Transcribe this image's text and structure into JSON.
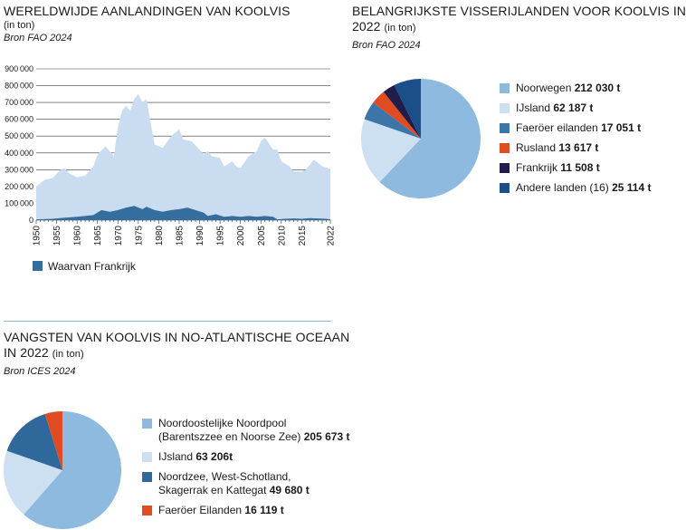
{
  "chart1": {
    "title": "WERELDWIJDE AANLANDINGEN VAN KOOLVIS",
    "unit": "(in ton)",
    "source": "Bron FAO 2024",
    "legend_label": "Waarvan Frankrijk"
  },
  "chart2": {
    "title_line1": "BELANGRIJKSTE VISSERIJLANDEN VOOR KOOLVIS IN",
    "title_line2": "2022",
    "unit": "(in ton)",
    "source": "Bron FAO 2024"
  },
  "chart3": {
    "title_line1": "VANGSTEN VAN KOOLVIS IN NO-ATLANTISCHE OCEAAN",
    "title_line2": "IN 2022",
    "unit": "(in ton)",
    "source": "Bron ICES 2024"
  },
  "chart_data": [
    {
      "type": "area",
      "title": "WERELDWIJDE AANLANDINGEN VAN KOOLVIS",
      "xlim": [
        1950,
        2022
      ],
      "ylim": [
        0,
        900000
      ],
      "y_ticks": [
        "0",
        "100000",
        "200000",
        "300000",
        "400000",
        "500000",
        "600000",
        "700000",
        "800000",
        "900000"
      ],
      "x_ticks": [
        "1950",
        "1955",
        "1960",
        "1965",
        "1970",
        "1975",
        "1980",
        "1985",
        "1990",
        "1995",
        "2000",
        "2005",
        "2010",
        "2015",
        "2022"
      ],
      "grid": true,
      "series": [
        {
          "values": [
            [
              1950,
              200000
            ],
            [
              1952,
              240000
            ],
            [
              1954,
              250000
            ],
            [
              1956,
              300000
            ],
            [
              1957,
              310000
            ],
            [
              1958,
              280000
            ],
            [
              1960,
              255000
            ],
            [
              1962,
              265000
            ],
            [
              1964,
              320000
            ],
            [
              1965,
              390000
            ],
            [
              1967,
              440000
            ],
            [
              1969,
              380000
            ],
            [
              1970,
              550000
            ],
            [
              1971,
              650000
            ],
            [
              1972,
              680000
            ],
            [
              1973,
              650000
            ],
            [
              1974,
              720000
            ],
            [
              1975,
              750000
            ],
            [
              1976,
              700000
            ],
            [
              1977,
              720000
            ],
            [
              1978,
              580000
            ],
            [
              1979,
              450000
            ],
            [
              1981,
              430000
            ],
            [
              1983,
              500000
            ],
            [
              1985,
              540000
            ],
            [
              1986,
              480000
            ],
            [
              1988,
              470000
            ],
            [
              1990,
              420000
            ],
            [
              1991,
              390000
            ],
            [
              1992,
              410000
            ],
            [
              1993,
              380000
            ],
            [
              1995,
              370000
            ],
            [
              1996,
              320000
            ],
            [
              1998,
              350000
            ],
            [
              1999,
              320000
            ],
            [
              2000,
              310000
            ],
            [
              2002,
              380000
            ],
            [
              2004,
              410000
            ],
            [
              2005,
              470000
            ],
            [
              2006,
              490000
            ],
            [
              2008,
              420000
            ],
            [
              2009,
              420000
            ],
            [
              2010,
              350000
            ],
            [
              2012,
              320000
            ],
            [
              2013,
              290000
            ],
            [
              2015,
              290000
            ],
            [
              2016,
              300000
            ],
            [
              2017,
              330000
            ],
            [
              2018,
              360000
            ],
            [
              2019,
              340000
            ],
            [
              2020,
              320000
            ],
            [
              2022,
              305000
            ]
          ]
        },
        {
          "name": "Waarvan Frankrijk",
          "values": [
            [
              1950,
              5000
            ],
            [
              1954,
              8000
            ],
            [
              1957,
              15000
            ],
            [
              1960,
              20000
            ],
            [
              1964,
              30000
            ],
            [
              1966,
              60000
            ],
            [
              1968,
              50000
            ],
            [
              1970,
              60000
            ],
            [
              1972,
              75000
            ],
            [
              1974,
              85000
            ],
            [
              1976,
              65000
            ],
            [
              1977,
              80000
            ],
            [
              1979,
              60000
            ],
            [
              1981,
              50000
            ],
            [
              1983,
              60000
            ],
            [
              1985,
              65000
            ],
            [
              1987,
              75000
            ],
            [
              1989,
              60000
            ],
            [
              1991,
              45000
            ],
            [
              1992,
              25000
            ],
            [
              1993,
              30000
            ],
            [
              1994,
              35000
            ],
            [
              1996,
              20000
            ],
            [
              1998,
              25000
            ],
            [
              2000,
              20000
            ],
            [
              2002,
              25000
            ],
            [
              2004,
              20000
            ],
            [
              2006,
              25000
            ],
            [
              2008,
              20000
            ],
            [
              2009,
              5000
            ],
            [
              2011,
              8000
            ],
            [
              2013,
              10000
            ],
            [
              2015,
              8000
            ],
            [
              2017,
              12000
            ],
            [
              2019,
              10000
            ],
            [
              2021,
              8000
            ],
            [
              2022,
              5000
            ]
          ]
        }
      ],
      "colors": {
        "total": "#c9dcf0",
        "france": "#346e9e"
      }
    },
    {
      "type": "pie",
      "title": "BELANGRIJKSTE VISSERIJLANDEN VOOR KOOLVIS IN 2022",
      "slices": [
        {
          "name": "Noorwegen",
          "value": 212030,
          "value_label": "212 030 t",
          "color": "#8ebadf"
        },
        {
          "name": "IJsland",
          "value": 62187,
          "value_label": "62 187 t",
          "color": "#cde0f2"
        },
        {
          "name": "Faeröer eilanden",
          "value": 17051,
          "value_label": "17 051 t",
          "color": "#3c76a8"
        },
        {
          "name": "Rusland",
          "value": 13617,
          "value_label": "13 617 t",
          "color": "#e04b22"
        },
        {
          "name": "Frankrijk",
          "value": 11508,
          "value_label": "11 508 t",
          "color": "#211d4b"
        },
        {
          "name": "Andere landen (16)",
          "value": 25114,
          "value_label": "25 114 t",
          "color": "#1a4f8a"
        }
      ]
    },
    {
      "type": "pie",
      "title": "VANGSTEN VAN KOOLVIS IN NO-ATLANTISCHE OCEAAN IN 2022",
      "slices": [
        {
          "name_lines": [
            "Noordoostelijke Noordpool",
            "(Barentszzee en Noorse Zee)"
          ],
          "value": 205673,
          "value_label": "205 673 t",
          "color": "#8ebadf"
        },
        {
          "name_lines": [
            "IJsland"
          ],
          "value": 63206,
          "value_label": "63 206t",
          "color": "#cde0f2"
        },
        {
          "name_lines": [
            "Noordzee, West-Schotland,",
            "Skagerrak en Kattegat"
          ],
          "value": 49680,
          "value_label": "49 680 t",
          "color": "#2f689a"
        },
        {
          "name_lines": [
            "Faeröer Eilanden"
          ],
          "value": 16119,
          "value_label": "16 119 t",
          "color": "#e04b22"
        }
      ]
    }
  ]
}
